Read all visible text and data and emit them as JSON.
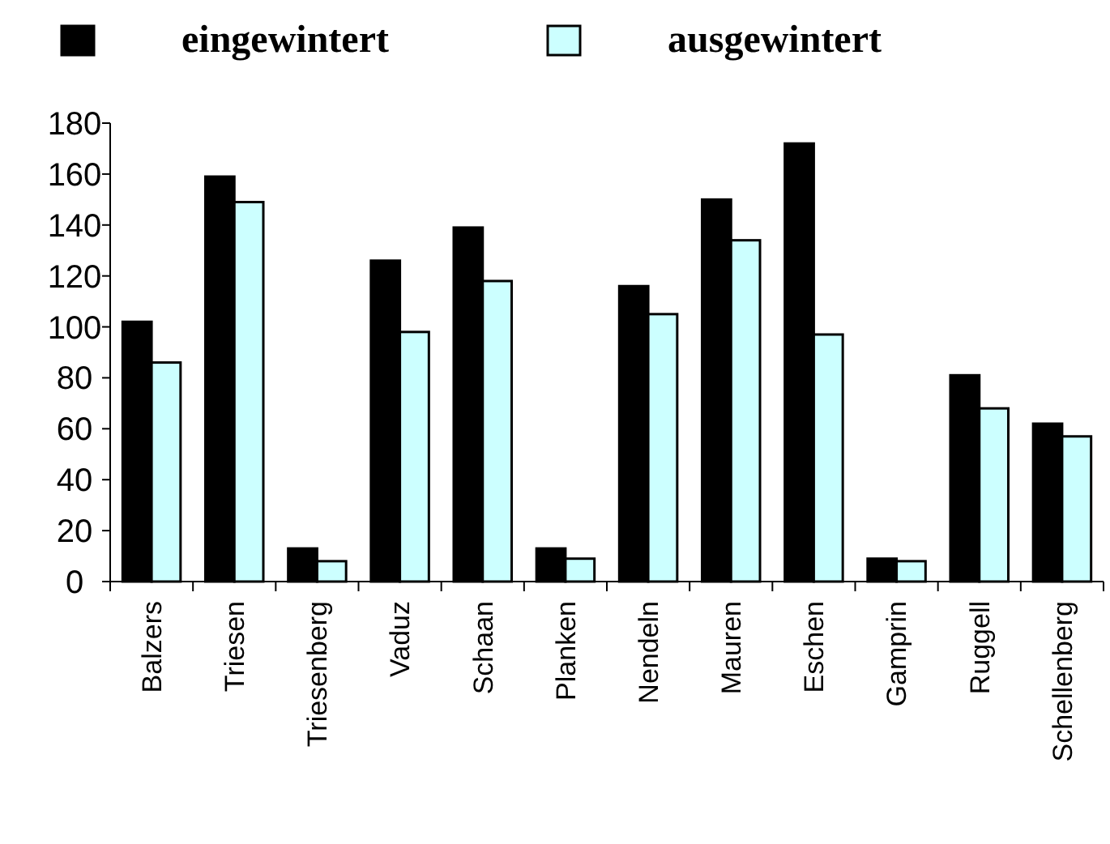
{
  "chart_data": {
    "type": "bar",
    "categories": [
      "Balzers",
      "Triesen",
      "Triesenberg",
      "Vaduz",
      "Schaan",
      "Planken",
      "Nendeln",
      "Mauren",
      "Eschen",
      "Gamprin",
      "Ruggell",
      "Schellenberg"
    ],
    "series": [
      {
        "name": "eingewintert",
        "color": "#000000",
        "values": [
          102,
          159,
          13,
          126,
          139,
          13,
          116,
          150,
          172,
          9,
          81,
          62
        ]
      },
      {
        "name": "ausgewintert",
        "color": "#ccffff",
        "values": [
          86,
          149,
          8,
          98,
          118,
          9,
          105,
          134,
          97,
          8,
          68,
          57
        ]
      }
    ],
    "ylim": [
      0,
      180
    ],
    "yticks": [
      0,
      20,
      40,
      60,
      80,
      100,
      120,
      140,
      160,
      180
    ],
    "legend": "top",
    "grid": false
  }
}
